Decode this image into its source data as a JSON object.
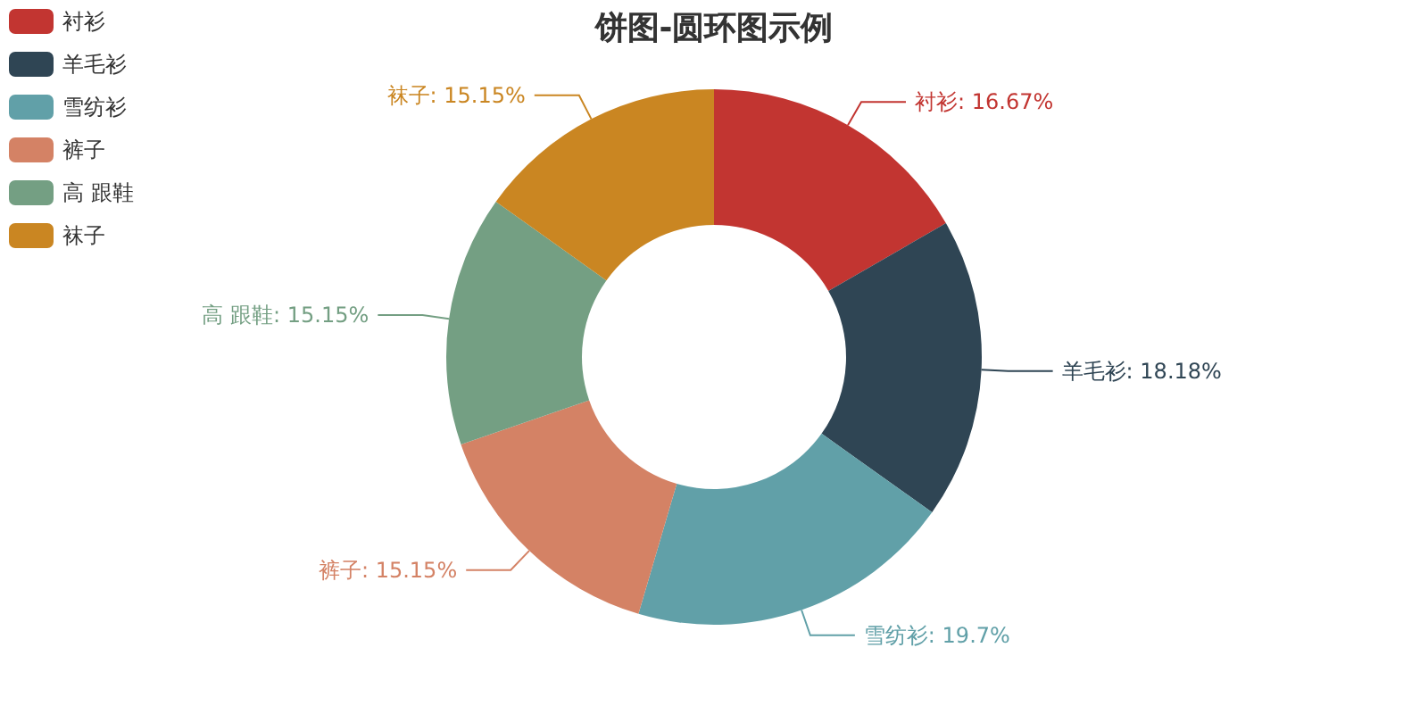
{
  "chart_data": {
    "type": "donut",
    "title": "饼图-圆环图示例",
    "categories": [
      "衬衫",
      "羊毛衫",
      "雪纺衫",
      "裤子",
      "高 跟鞋",
      "袜子"
    ],
    "values": [
      16.67,
      18.18,
      19.7,
      15.15,
      15.15,
      15.15
    ],
    "colors": [
      "#c23531",
      "#2f4554",
      "#61a0a8",
      "#d48265",
      "#749f83",
      "#ca8622"
    ],
    "value_labels": [
      "衬衫: 16.67%",
      "羊毛衫: 18.18%",
      "雪纺衫: 19.7%",
      "裤子: 15.15%",
      "高 跟鞋: 15.15%",
      "袜子: 15.15%"
    ],
    "legend": "top left"
  }
}
